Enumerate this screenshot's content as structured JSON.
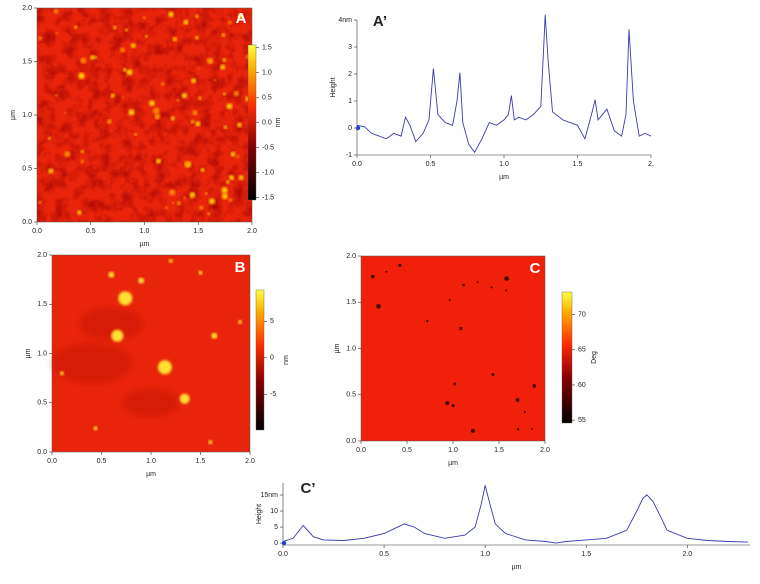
{
  "chart_data": [
    {
      "type": "image",
      "label": "A",
      "xlabel": "µm",
      "ylabel": "µm",
      "xlim": [
        0,
        2
      ],
      "ylim": [
        0,
        2
      ],
      "xticks": [
        {
          "value": 0,
          "label": "0.0"
        },
        {
          "value": 0.5,
          "label": "0.5"
        },
        {
          "value": 1,
          "label": "1.0"
        },
        {
          "value": 1.5,
          "label": "1.5"
        },
        {
          "value": 2,
          "label": "2.0"
        }
      ],
      "yticks": [
        {
          "value": 0,
          "label": "0.0"
        },
        {
          "value": 0.5,
          "label": "0.5"
        },
        {
          "value": 1,
          "label": "1.0"
        },
        {
          "value": 1.5,
          "label": "1.5"
        },
        {
          "value": 2,
          "label": "2.0"
        }
      ],
      "colorbar": {
        "unit": "nm",
        "lim": [
          -1.55,
          1.55
        ],
        "ticks": [
          {
            "value": 1.5,
            "label": "1.5"
          },
          {
            "value": 1,
            "label": "1.0"
          },
          {
            "value": 0.5,
            "label": "0.5"
          },
          {
            "value": 0,
            "label": "0.0"
          },
          {
            "value": -0.5,
            "label": "-0.5"
          },
          {
            "value": -1,
            "label": "-1.0"
          },
          {
            "value": -1.5,
            "label": "-1.5"
          }
        ]
      }
    },
    {
      "type": "line",
      "label": "A’",
      "xlabel": "µm",
      "ylabel": "Height",
      "color": "#3a3ab0",
      "xlim": [
        0,
        2
      ],
      "ylim": [
        -1,
        4
      ],
      "xticks": [
        {
          "value": 0,
          "label": "0.0"
        },
        {
          "value": 0.5,
          "label": "0.5"
        },
        {
          "value": 1,
          "label": "1.0"
        },
        {
          "value": 1.5,
          "label": "1.5"
        },
        {
          "value": 2,
          "label": "2."
        }
      ],
      "yticks": [
        {
          "value": 4,
          "label": "4nm"
        },
        3,
        2,
        1,
        0,
        -1
      ],
      "x": [
        0,
        0.05,
        0.1,
        0.15,
        0.2,
        0.25,
        0.3,
        0.33,
        0.36,
        0.4,
        0.45,
        0.49,
        0.52,
        0.55,
        0.6,
        0.65,
        0.68,
        0.7,
        0.72,
        0.76,
        0.8,
        0.85,
        0.9,
        0.95,
        1.0,
        1.03,
        1.05,
        1.07,
        1.1,
        1.15,
        1.2,
        1.25,
        1.27,
        1.28,
        1.3,
        1.33,
        1.4,
        1.45,
        1.5,
        1.55,
        1.6,
        1.62,
        1.64,
        1.7,
        1.75,
        1.8,
        1.83,
        1.85,
        1.88,
        1.92,
        1.96,
        2.0
      ],
      "values": [
        0.1,
        0.05,
        -0.2,
        -0.3,
        -0.4,
        -0.2,
        -0.3,
        0.4,
        0.1,
        -0.5,
        -0.2,
        0.3,
        2.2,
        0.5,
        0.2,
        0.1,
        1.0,
        2.05,
        0.2,
        -0.6,
        -0.9,
        -0.4,
        0.2,
        0.1,
        0.3,
        0.5,
        1.2,
        0.3,
        0.4,
        0.3,
        0.5,
        0.8,
        3.0,
        4.2,
        2.5,
        0.6,
        0.3,
        0.2,
        0.1,
        -0.4,
        0.6,
        1.05,
        0.3,
        0.7,
        -0.1,
        -0.3,
        0.5,
        3.65,
        1.0,
        -0.3,
        -0.2,
        -0.3
      ]
    },
    {
      "type": "image",
      "label": "B",
      "xlabel": "µm",
      "ylabel": "µm",
      "xlim": [
        0,
        2
      ],
      "ylim": [
        0,
        2
      ],
      "xticks": [
        {
          "value": 0,
          "label": "0.0"
        },
        {
          "value": 0.5,
          "label": "0.5"
        },
        {
          "value": 1,
          "label": "1.0"
        },
        {
          "value": 1.5,
          "label": "1.5"
        },
        {
          "value": 2,
          "label": "2.0"
        }
      ],
      "yticks": [
        {
          "value": 0,
          "label": "0.0"
        },
        {
          "value": 0.5,
          "label": "0.5"
        },
        {
          "value": 1,
          "label": "1.0"
        },
        {
          "value": 1.5,
          "label": "1.5"
        },
        {
          "value": 2,
          "label": "2.0"
        }
      ],
      "colorbar": {
        "unit": "nm",
        "lim": [
          -9.9,
          9.3
        ],
        "ticks": [
          5,
          0,
          -5
        ]
      }
    },
    {
      "type": "image",
      "label": "C",
      "xlabel": "µm",
      "ylabel": "µm",
      "xlim": [
        0,
        2
      ],
      "ylim": [
        0,
        2
      ],
      "xticks": [
        {
          "value": 0,
          "label": "0.0"
        },
        {
          "value": 0.5,
          "label": "0.5"
        },
        {
          "value": 1,
          "label": "1.0"
        },
        {
          "value": 1.5,
          "label": "1.5"
        },
        {
          "value": 2,
          "label": "2.0"
        }
      ],
      "yticks": [
        {
          "value": 0,
          "label": "0.0"
        },
        {
          "value": 0.5,
          "label": "0.5"
        },
        {
          "value": 1,
          "label": "1.0"
        },
        {
          "value": 1.5,
          "label": "1.5"
        },
        {
          "value": 2,
          "label": "2.0"
        }
      ],
      "colorbar": {
        "unit": "Deg",
        "lim": [
          54.6,
          73.2
        ],
        "ticks": [
          70,
          65,
          60,
          55
        ]
      }
    },
    {
      "type": "line",
      "label": "C’",
      "xlabel": "µm",
      "ylabel": "Height",
      "color": "#3a3ab0",
      "xlim": [
        0,
        2.31
      ],
      "ylim": [
        -0.6,
        18.75
      ],
      "xticks": [
        {
          "value": 0,
          "label": "0.0"
        },
        {
          "value": 0.5,
          "label": "0.5"
        },
        {
          "value": 1,
          "label": "1.0"
        },
        {
          "value": 1.5,
          "label": "1.5"
        },
        {
          "value": 2,
          "label": "2.0"
        }
      ],
      "yticks": [
        0,
        5,
        10,
        {
          "value": 15,
          "label": "15nm"
        }
      ],
      "x": [
        0,
        0.05,
        0.1,
        0.15,
        0.2,
        0.3,
        0.4,
        0.5,
        0.55,
        0.6,
        0.65,
        0.7,
        0.8,
        0.9,
        0.95,
        0.98,
        1.0,
        1.02,
        1.05,
        1.1,
        1.2,
        1.3,
        1.35,
        1.4,
        1.5,
        1.6,
        1.7,
        1.75,
        1.78,
        1.8,
        1.83,
        1.87,
        1.9,
        2.0,
        2.1,
        2.2,
        2.3
      ],
      "values": [
        0.5,
        1.5,
        5.5,
        2,
        1,
        0.8,
        1.5,
        3,
        4.5,
        6,
        5,
        3,
        1.5,
        2.5,
        5,
        12,
        18,
        13,
        6,
        3,
        1,
        0.5,
        0,
        0.5,
        1,
        1.5,
        4,
        10,
        14,
        15,
        13,
        8,
        4,
        1.5,
        0.8,
        0.5,
        0.3
      ]
    }
  ]
}
